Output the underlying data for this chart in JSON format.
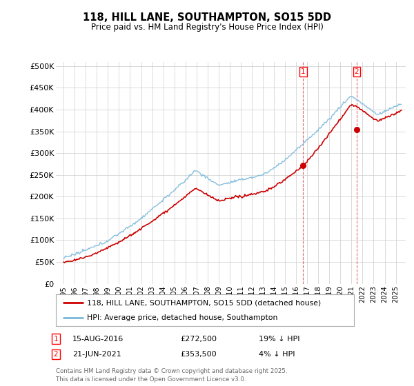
{
  "title": "118, HILL LANE, SOUTHAMPTON, SO15 5DD",
  "subtitle": "Price paid vs. HM Land Registry's House Price Index (HPI)",
  "ylabel_ticks": [
    "£0",
    "£50K",
    "£100K",
    "£150K",
    "£200K",
    "£250K",
    "£300K",
    "£350K",
    "£400K",
    "£450K",
    "£500K"
  ],
  "ytick_values": [
    0,
    50000,
    100000,
    150000,
    200000,
    250000,
    300000,
    350000,
    400000,
    450000,
    500000
  ],
  "ylim": [
    0,
    510000
  ],
  "x_start_year": 1995,
  "x_end_year": 2025,
  "hpi_color": "#7ab8d9",
  "price_color": "#cc0000",
  "marker1_year": 2016.622,
  "marker1_price": 272500,
  "marker1_hpi_pct": "19% ↓ HPI",
  "marker1_date_label": "15-AUG-2016",
  "marker2_year": 2021.472,
  "marker2_price": 353500,
  "marker2_hpi_pct": "4% ↓ HPI",
  "marker2_date_label": "21-JUN-2021",
  "legend_label_price": "118, HILL LANE, SOUTHAMPTON, SO15 5DD (detached house)",
  "legend_label_hpi": "HPI: Average price, detached house, Southampton",
  "footer": "Contains HM Land Registry data © Crown copyright and database right 2025.\nThis data is licensed under the Open Government Licence v3.0.",
  "bg_color": "#ffffff",
  "grid_color": "#cccccc"
}
